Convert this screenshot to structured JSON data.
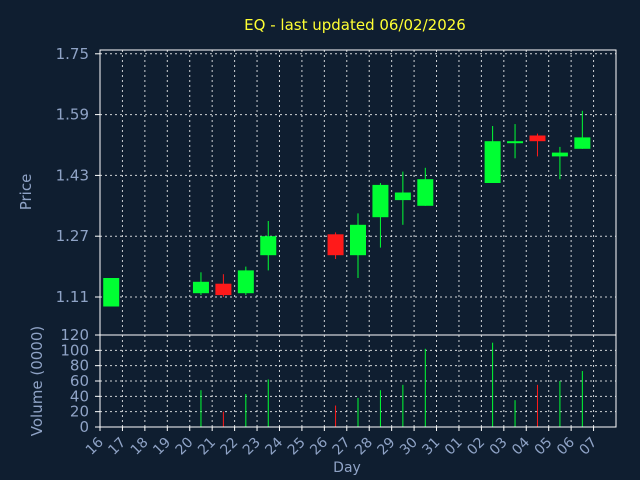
{
  "colors": {
    "background": "#0f1e30",
    "frame": "#ffffff",
    "grid": "#ffffff",
    "title": "#ffff33",
    "axis_text": "#8fa3c6",
    "up": "#00ff33",
    "down": "#ff1a1a"
  },
  "chart_data": [
    {
      "type": "candlestick",
      "title": "EQ - last updated 06/02/2026",
      "ylabel": "Price",
      "ylim": [
        1.01,
        1.76
      ],
      "yticks": [
        "1.75",
        "1.59",
        "1.43",
        "1.27",
        "1.11"
      ],
      "grid": true,
      "categories": [
        "16",
        "17",
        "18",
        "19",
        "20",
        "21",
        "22",
        "23",
        "24",
        "25",
        "26",
        "27",
        "28",
        "29",
        "30",
        "31",
        "01",
        "02",
        "03",
        "04",
        "05",
        "06",
        "07"
      ],
      "candles": [
        {
          "day": "16",
          "open": 1.085,
          "close": 1.16,
          "high": 1.16,
          "low": 1.085
        },
        {
          "day": "20",
          "open": 1.12,
          "close": 1.15,
          "high": 1.175,
          "low": 1.115
        },
        {
          "day": "21",
          "open": 1.145,
          "close": 1.115,
          "high": 1.17,
          "low": 1.11
        },
        {
          "day": "22",
          "open": 1.12,
          "close": 1.18,
          "high": 1.19,
          "low": 1.115
        },
        {
          "day": "23",
          "open": 1.22,
          "close": 1.27,
          "high": 1.31,
          "low": 1.18
        },
        {
          "day": "26",
          "open": 1.275,
          "close": 1.22,
          "high": 1.28,
          "low": 1.21
        },
        {
          "day": "27",
          "open": 1.22,
          "close": 1.3,
          "high": 1.33,
          "low": 1.16
        },
        {
          "day": "28",
          "open": 1.32,
          "close": 1.405,
          "high": 1.41,
          "low": 1.24
        },
        {
          "day": "29",
          "open": 1.365,
          "close": 1.385,
          "high": 1.44,
          "low": 1.3
        },
        {
          "day": "30",
          "open": 1.35,
          "close": 1.42,
          "high": 1.45,
          "low": 1.35
        },
        {
          "day": "02",
          "open": 1.41,
          "close": 1.52,
          "high": 1.56,
          "low": 1.41
        },
        {
          "day": "03",
          "open": 1.515,
          "close": 1.52,
          "high": 1.565,
          "low": 1.475
        },
        {
          "day": "04",
          "open": 1.535,
          "close": 1.52,
          "high": 1.54,
          "low": 1.48
        },
        {
          "day": "05",
          "open": 1.48,
          "close": 1.49,
          "high": 1.505,
          "low": 1.42
        },
        {
          "day": "06",
          "open": 1.5,
          "close": 1.53,
          "high": 1.6,
          "low": 1.5
        }
      ]
    },
    {
      "type": "bar",
      "ylabel": "Volume (0000)",
      "xlabel": "Day",
      "ylim": [
        0,
        120
      ],
      "yticks": [
        "120",
        "100",
        "80",
        "60",
        "40",
        "20",
        "0"
      ],
      "grid": true,
      "categories": [
        "16",
        "17",
        "18",
        "19",
        "20",
        "21",
        "22",
        "23",
        "24",
        "25",
        "26",
        "27",
        "28",
        "29",
        "30",
        "31",
        "01",
        "02",
        "03",
        "04",
        "05",
        "06",
        "07"
      ],
      "bars": [
        {
          "day": "16",
          "value": 0,
          "dir": "up"
        },
        {
          "day": "20",
          "value": 48,
          "dir": "up"
        },
        {
          "day": "21",
          "value": 20,
          "dir": "down"
        },
        {
          "day": "22",
          "value": 43,
          "dir": "up"
        },
        {
          "day": "23",
          "value": 62,
          "dir": "up"
        },
        {
          "day": "26",
          "value": 28,
          "dir": "down"
        },
        {
          "day": "27",
          "value": 38,
          "dir": "up"
        },
        {
          "day": "28",
          "value": 48,
          "dir": "up"
        },
        {
          "day": "29",
          "value": 55,
          "dir": "up"
        },
        {
          "day": "30",
          "value": 102,
          "dir": "up"
        },
        {
          "day": "02",
          "value": 110,
          "dir": "up"
        },
        {
          "day": "03",
          "value": 35,
          "dir": "up"
        },
        {
          "day": "04",
          "value": 55,
          "dir": "down"
        },
        {
          "day": "05",
          "value": 60,
          "dir": "up"
        },
        {
          "day": "06",
          "value": 73,
          "dir": "up"
        }
      ]
    }
  ]
}
